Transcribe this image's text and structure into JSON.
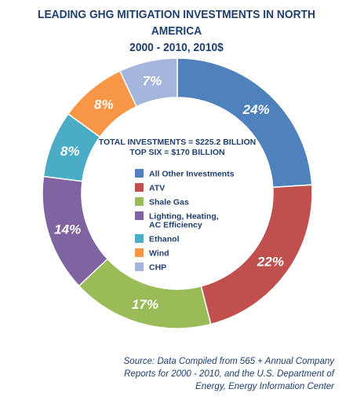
{
  "chart_data": {
    "type": "pie",
    "title": "LEADING GHG MITIGATION INVESTMENTS IN NORTH AMERICA",
    "subtitle": "2000 - 2010, 2010$",
    "center_text": [
      "TOTAL INVESTMENTS = $225.2 BILLION",
      "TOP SIX = $170 BILLION"
    ],
    "categories": [
      "All Other Investments",
      "ATV",
      "Shale Gas",
      "Lighting, Heating, AC Efficiency",
      "Ethanol",
      "Wind",
      "CHP"
    ],
    "legend_lines": [
      [
        "All Other Investments"
      ],
      [
        "ATV"
      ],
      [
        "Shale Gas"
      ],
      [
        "Lighting, Heating,",
        "AC Efficiency"
      ],
      [
        "Ethanol"
      ],
      [
        "Wind"
      ],
      [
        "CHP"
      ]
    ],
    "values": [
      24,
      22,
      17,
      14,
      8,
      8,
      7
    ],
    "labels": [
      "24%",
      "22%",
      "17%",
      "14%",
      "8%",
      "8%",
      "7%"
    ],
    "colors": [
      "#4f81bd",
      "#c0504d",
      "#9bbb59",
      "#8064a2",
      "#4bacc6",
      "#f79646",
      "#a5b6dd"
    ],
    "legend_placement": "center",
    "donut": true
  },
  "source_lines": [
    "Source: Data Compiled from 565 + Annual Company",
    "Reports for 2000 - 2010, and the U.S. Department of",
    "Energy, Energy Information Center"
  ]
}
